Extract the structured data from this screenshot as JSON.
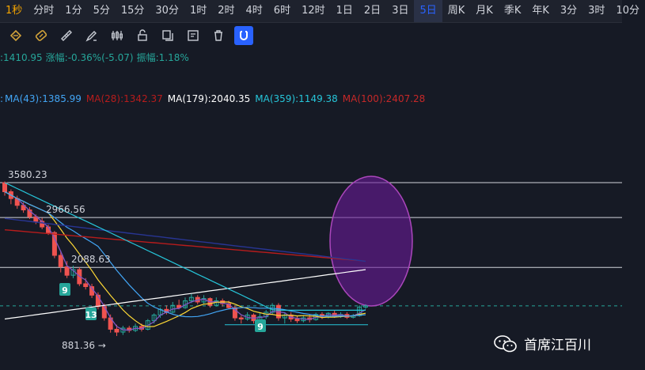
{
  "timeframes": [
    "1秒",
    "分时",
    "1分",
    "5分",
    "15分",
    "30分",
    "1时",
    "2时",
    "4时",
    "6时",
    "12时",
    "1日",
    "2日",
    "3日",
    "5日",
    "周K",
    "月K",
    "季K",
    "年K",
    "3分",
    "3时",
    "10分"
  ],
  "active_timeframe": "5日",
  "tools": [
    "crosshair-icon",
    "measure-icon",
    "ruler-icon",
    "brush-icon",
    "bars-icon",
    "lock-icon",
    "copy-icon",
    "note-icon",
    "trash-icon",
    "magnet-icon"
  ],
  "stats": {
    "close": ":1410.95",
    "change": "涨幅:-0.36%(-5.07)",
    "amplitude": "振幅:1.18%"
  },
  "ma": {
    "ma43": "MA(43):1385.99",
    "ma28": "MA(28):1342.37",
    "ma179": "MA(179):2040.35",
    "ma359": "MA(359):1149.38",
    "ma100": "MA(100):2407.28",
    "cut_prefix": ":"
  },
  "colors": {
    "up": "#26a69a",
    "down": "#ef5350",
    "ma43": "#42a5f5",
    "ma28": "#b71c1c",
    "ma179": "#ffffff",
    "ma359": "#26c6da",
    "ma100": "#c62828",
    "active": "#2962ff",
    "ellipse_fill": "#6a1b9a",
    "ellipse_stroke": "#ab47bc"
  },
  "chart_data": {
    "type": "candlestick",
    "price_labels": [
      {
        "value": 3580.23,
        "text": "3580.23"
      },
      {
        "value": 2966.56,
        "text": "2966.56"
      },
      {
        "value": 2088.63,
        "text": "2088.63"
      },
      {
        "value": 881.36,
        "text": "881.36 →"
      }
    ],
    "horizontal_levels": [
      3580.23,
      2966.56,
      2088.63,
      1410.95
    ],
    "td_markers": [
      "9",
      "13",
      "9"
    ],
    "candles": [
      [
        3580,
        3420,
        3600,
        3350
      ],
      [
        3420,
        3300,
        3460,
        3200
      ],
      [
        3300,
        3180,
        3350,
        3120
      ],
      [
        3180,
        3100,
        3230,
        3050
      ],
      [
        3100,
        2980,
        3150,
        2940
      ],
      [
        2980,
        2900,
        3020,
        2850
      ],
      [
        2900,
        2800,
        2960,
        2760
      ],
      [
        2800,
        2700,
        2840,
        2660
      ],
      [
        2700,
        2300,
        2730,
        2250
      ],
      [
        2300,
        2100,
        2380,
        2000
      ],
      [
        2100,
        1950,
        2200,
        1900
      ],
      [
        1950,
        2050,
        2120,
        1900
      ],
      [
        2050,
        1800,
        2090,
        1760
      ],
      [
        1800,
        1750,
        1900,
        1700
      ],
      [
        1750,
        1600,
        1800,
        1550
      ],
      [
        1600,
        1400,
        1650,
        1350
      ],
      [
        1400,
        1200,
        1450,
        1150
      ],
      [
        1200,
        1000,
        1260,
        940
      ],
      [
        1000,
        950,
        1080,
        881
      ],
      [
        950,
        1020,
        1060,
        900
      ],
      [
        1020,
        980,
        1060,
        940
      ],
      [
        980,
        1050,
        1100,
        950
      ],
      [
        1050,
        1000,
        1100,
        960
      ],
      [
        1000,
        1150,
        1180,
        980
      ],
      [
        1150,
        1250,
        1280,
        1100
      ],
      [
        1250,
        1350,
        1380,
        1200
      ],
      [
        1350,
        1300,
        1420,
        1260
      ],
      [
        1300,
        1420,
        1480,
        1280
      ],
      [
        1420,
        1380,
        1520,
        1350
      ],
      [
        1380,
        1500,
        1560,
        1360
      ],
      [
        1500,
        1560,
        1620,
        1460
      ],
      [
        1560,
        1480,
        1600,
        1440
      ],
      [
        1480,
        1540,
        1600,
        1440
      ],
      [
        1540,
        1420,
        1560,
        1380
      ],
      [
        1420,
        1500,
        1560,
        1400
      ],
      [
        1500,
        1450,
        1540,
        1400
      ],
      [
        1450,
        1380,
        1500,
        1350
      ],
      [
        1380,
        1200,
        1420,
        1150
      ],
      [
        1200,
        1180,
        1240,
        1100
      ],
      [
        1180,
        1250,
        1300,
        1150
      ],
      [
        1250,
        1150,
        1280,
        1100
      ],
      [
        1150,
        1220,
        1300,
        1120
      ],
      [
        1220,
        1300,
        1340,
        1180
      ],
      [
        1300,
        1420,
        1460,
        1260
      ],
      [
        1420,
        1200,
        1460,
        1150
      ],
      [
        1200,
        1250,
        1300,
        1100
      ],
      [
        1250,
        1180,
        1300,
        1130
      ],
      [
        1180,
        1150,
        1240,
        1110
      ],
      [
        1150,
        1200,
        1250,
        1120
      ],
      [
        1200,
        1170,
        1260,
        1120
      ],
      [
        1170,
        1260,
        1290,
        1150
      ],
      [
        1260,
        1230,
        1300,
        1180
      ],
      [
        1230,
        1280,
        1300,
        1190
      ],
      [
        1280,
        1230,
        1330,
        1200
      ],
      [
        1230,
        1260,
        1300,
        1200
      ],
      [
        1260,
        1210,
        1300,
        1180
      ],
      [
        1210,
        1240,
        1270,
        1190
      ],
      [
        1240,
        1390,
        1420,
        1220
      ],
      [
        1390,
        1410,
        1440,
        1360
      ]
    ]
  }
}
